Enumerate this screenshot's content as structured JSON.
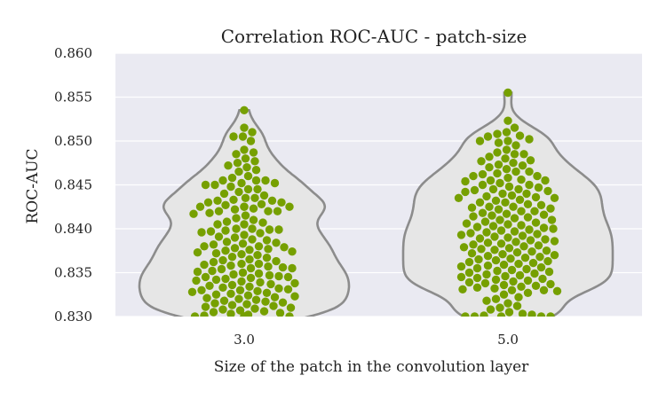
{
  "chart_data": {
    "type": "violin-swarm",
    "title": "Correlation ROC-AUC - patch-size",
    "xlabel": "Size of the patch in the convolution layer",
    "ylabel": "ROC-AUC",
    "ylim": [
      0.83,
      0.86
    ],
    "yticks": [
      "0.830",
      "0.835",
      "0.840",
      "0.845",
      "0.850",
      "0.855",
      "0.860"
    ],
    "grid": true,
    "colors": {
      "plot_bg": "#eaeaf2",
      "grid": "#ffffff",
      "violin_fill": "#e6e6e6",
      "violin_edge": "#8c8c8c",
      "point": "#76a000"
    },
    "categories": [
      "3.0",
      "5.0"
    ],
    "series": [
      {
        "category": "3.0",
        "values": [
          0.8535,
          0.8515,
          0.851,
          0.8505,
          0.8505,
          0.85,
          0.849,
          0.8487,
          0.8485,
          0.848,
          0.8477,
          0.8475,
          0.8472,
          0.847,
          0.8467,
          0.8465,
          0.846,
          0.8458,
          0.8455,
          0.8455,
          0.8455,
          0.8452,
          0.8452,
          0.845,
          0.845,
          0.8448,
          0.8445,
          0.8445,
          0.8442,
          0.844,
          0.8438,
          0.8435,
          0.8435,
          0.8433,
          0.8432,
          0.8432,
          0.843,
          0.843,
          0.8428,
          0.8427,
          0.8425,
          0.8425,
          0.8425,
          0.8425,
          0.8423,
          0.8422,
          0.842,
          0.842,
          0.842,
          0.8418,
          0.8417,
          0.8415,
          0.8412,
          0.841,
          0.8408,
          0.8407,
          0.8405,
          0.8405,
          0.84,
          0.84,
          0.8399,
          0.8399,
          0.8398,
          0.8397,
          0.8396,
          0.8395,
          0.8393,
          0.8391,
          0.839,
          0.8388,
          0.8387,
          0.8385,
          0.8384,
          0.8383,
          0.8382,
          0.838,
          0.838,
          0.8379,
          0.8378,
          0.8377,
          0.8376,
          0.8375,
          0.8374,
          0.8373,
          0.8372,
          0.8371,
          0.837,
          0.8368,
          0.8367,
          0.8365,
          0.8364,
          0.8363,
          0.8362,
          0.836,
          0.836,
          0.8359,
          0.8358,
          0.8357,
          0.8356,
          0.8355,
          0.8355,
          0.8354,
          0.8352,
          0.8351,
          0.835,
          0.8349,
          0.8348,
          0.8347,
          0.8346,
          0.8345,
          0.8345,
          0.8344,
          0.8343,
          0.8342,
          0.8341,
          0.834,
          0.8339,
          0.8338,
          0.8337,
          0.8336,
          0.8335,
          0.8334,
          0.8333,
          0.8332,
          0.8331,
          0.833,
          0.833,
          0.8329,
          0.8328,
          0.8327,
          0.8326,
          0.8325,
          0.8324,
          0.8323,
          0.8322,
          0.8321,
          0.832,
          0.8319,
          0.8318,
          0.8317,
          0.8316,
          0.8315,
          0.8314,
          0.8313,
          0.8312,
          0.8311,
          0.831,
          0.8309,
          0.8308,
          0.8307,
          0.8306,
          0.8305,
          0.8304,
          0.8303,
          0.8302,
          0.8301,
          0.83,
          0.83,
          0.83,
          0.83,
          0.83
        ]
      },
      {
        "category": "5.0",
        "values": [
          0.8555,
          0.8523,
          0.8515,
          0.851,
          0.8508,
          0.8506,
          0.8505,
          0.8502,
          0.85,
          0.85,
          0.8498,
          0.8495,
          0.849,
          0.8487,
          0.8485,
          0.8485,
          0.8482,
          0.848,
          0.8478,
          0.8477,
          0.8475,
          0.8473,
          0.8472,
          0.847,
          0.8468,
          0.8465,
          0.8465,
          0.8463,
          0.8462,
          0.846,
          0.846,
          0.8458,
          0.8456,
          0.8455,
          0.8455,
          0.8454,
          0.8452,
          0.845,
          0.845,
          0.8448,
          0.8447,
          0.8445,
          0.8445,
          0.8444,
          0.8443,
          0.8442,
          0.844,
          0.844,
          0.8438,
          0.8437,
          0.8436,
          0.8435,
          0.8435,
          0.8433,
          0.8432,
          0.843,
          0.843,
          0.8428,
          0.8427,
          0.8425,
          0.8425,
          0.8424,
          0.8423,
          0.8422,
          0.842,
          0.842,
          0.8418,
          0.8417,
          0.8416,
          0.8415,
          0.8414,
          0.8413,
          0.8412,
          0.841,
          0.841,
          0.8408,
          0.8407,
          0.8406,
          0.8405,
          0.8404,
          0.8403,
          0.8402,
          0.8401,
          0.84,
          0.8399,
          0.8398,
          0.8397,
          0.8396,
          0.8395,
          0.8394,
          0.8393,
          0.8392,
          0.8391,
          0.839,
          0.8389,
          0.8388,
          0.8387,
          0.8386,
          0.8385,
          0.8384,
          0.8383,
          0.8382,
          0.8381,
          0.838,
          0.8379,
          0.8378,
          0.8377,
          0.8376,
          0.8375,
          0.8374,
          0.8373,
          0.8372,
          0.8371,
          0.837,
          0.8369,
          0.8368,
          0.8367,
          0.8366,
          0.8365,
          0.8364,
          0.8363,
          0.8362,
          0.8361,
          0.836,
          0.8359,
          0.8358,
          0.8357,
          0.8356,
          0.8355,
          0.8354,
          0.8353,
          0.8352,
          0.8351,
          0.835,
          0.8349,
          0.8348,
          0.8347,
          0.8346,
          0.8345,
          0.8344,
          0.8343,
          0.8342,
          0.8341,
          0.834,
          0.8339,
          0.8338,
          0.8337,
          0.8336,
          0.8335,
          0.8334,
          0.8333,
          0.8332,
          0.8331,
          0.833,
          0.833,
          0.8329,
          0.8327,
          0.8325,
          0.8322,
          0.832,
          0.8318,
          0.8315,
          0.8312,
          0.831,
          0.8308,
          0.8305,
          0.8303,
          0.8302,
          0.8301,
          0.83,
          0.83,
          0.83,
          0.83,
          0.83
        ]
      }
    ]
  }
}
